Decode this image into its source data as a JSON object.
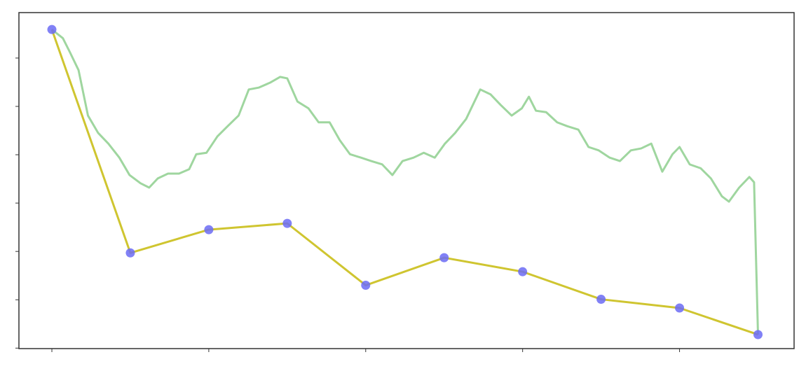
{
  "chart_data": {
    "type": "line",
    "xlim": [
      -0.42,
      9.46
    ],
    "xticks": [
      0,
      2,
      4,
      6,
      8
    ],
    "ylim": [
      -0.01,
      6.94
    ],
    "yticks": [
      0,
      1,
      2,
      3,
      4,
      5,
      6
    ],
    "series": [
      {
        "color": "#9fd69f",
        "x": [
          0,
          0.14,
          0.23,
          0.34,
          0.46,
          0.59,
          0.72,
          0.86,
          0.99,
          1.13,
          1.24,
          1.35,
          1.48,
          1.62,
          1.75,
          1.84,
          1.97,
          2.11,
          2.24,
          2.38,
          2.51,
          2.64,
          2.78,
          2.91,
          3.0,
          3.13,
          3.27,
          3.4,
          3.54,
          3.67,
          3.8,
          3.94,
          4.07,
          4.21,
          4.34,
          4.47,
          4.61,
          4.74,
          4.88,
          5.01,
          5.14,
          5.28,
          5.46,
          5.59,
          5.72,
          5.86,
          5.99,
          6.08,
          6.17,
          6.3,
          6.44,
          6.57,
          6.71,
          6.84,
          6.97,
          7.11,
          7.24,
          7.38,
          7.51,
          7.64,
          7.78,
          7.91,
          8.0,
          8.13,
          8.27,
          8.4,
          8.54,
          8.63,
          8.76,
          8.89,
          8.95,
          9.0
        ],
        "values": [
          6.59,
          6.41,
          6.12,
          5.75,
          4.81,
          4.45,
          4.23,
          3.94,
          3.58,
          3.41,
          3.32,
          3.51,
          3.61,
          3.61,
          3.7,
          4.01,
          4.04,
          4.38,
          4.59,
          4.81,
          5.35,
          5.39,
          5.49,
          5.61,
          5.58,
          5.1,
          4.96,
          4.67,
          4.67,
          4.3,
          4.01,
          3.94,
          3.87,
          3.8,
          3.58,
          3.87,
          3.94,
          4.04,
          3.94,
          4.23,
          4.45,
          4.74,
          5.35,
          5.25,
          5.03,
          4.81,
          4.96,
          5.2,
          4.91,
          4.88,
          4.67,
          4.59,
          4.52,
          4.16,
          4.09,
          3.94,
          3.87,
          4.09,
          4.13,
          4.23,
          3.65,
          4.01,
          4.16,
          3.8,
          3.72,
          3.51,
          3.14,
          3.03,
          3.32,
          3.54,
          3.43,
          0.28
        ]
      },
      {
        "color": "#cfc530",
        "marker_color": "#6b6bf5",
        "x": [
          0,
          1,
          2,
          3,
          4,
          5,
          6,
          7,
          8,
          9
        ],
        "values": [
          6.59,
          1.97,
          2.45,
          2.58,
          1.3,
          1.87,
          1.58,
          1.01,
          0.83,
          0.28
        ]
      }
    ]
  }
}
